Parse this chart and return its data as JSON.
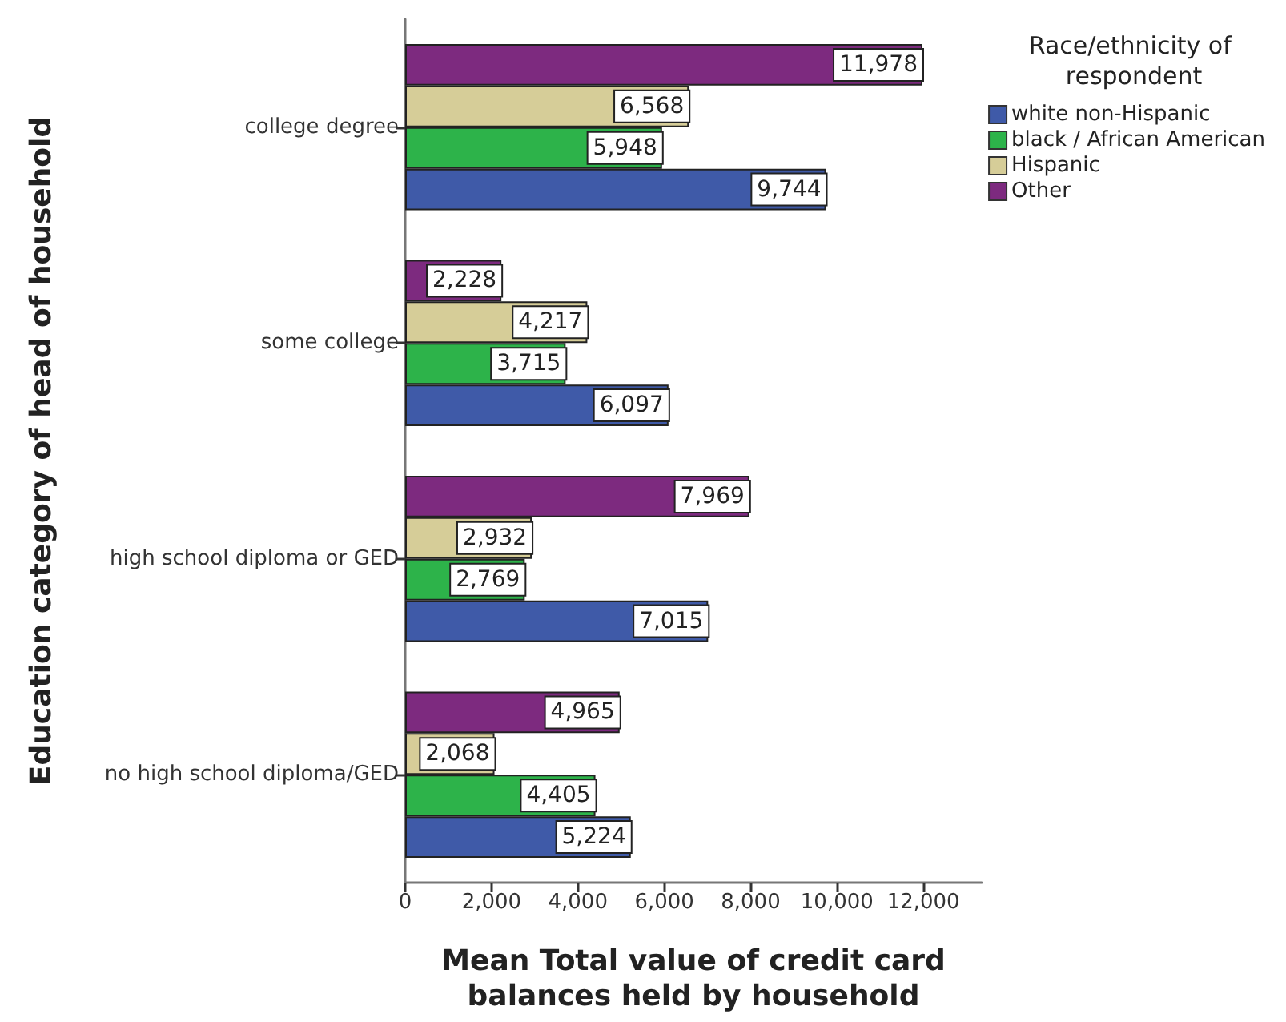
{
  "chart_data": {
    "type": "bar",
    "orientation": "horizontal",
    "ylabel": "Education category of head of household",
    "xlabel": "Mean Total value of credit card balances held by household",
    "legend_title": "Race/ethnicity of respondent",
    "categories": [
      "college degree",
      "some college",
      "high school diploma or GED",
      "no high school diploma/GED"
    ],
    "series": [
      {
        "name": "white non-Hispanic",
        "color": "#3f5aa8",
        "values": [
          9744,
          6097,
          7015,
          5224
        ],
        "value_labels": [
          "9,744",
          "6,097",
          "7,015",
          "5,224"
        ]
      },
      {
        "name": "black / African American",
        "color": "#2db34a",
        "values": [
          5948,
          3715,
          2769,
          4405
        ],
        "value_labels": [
          "5,948",
          "3,715",
          "2,769",
          "4,405"
        ]
      },
      {
        "name": "Hispanic",
        "color": "#d6cd98",
        "values": [
          6568,
          4217,
          2932,
          2068
        ],
        "value_labels": [
          "6,568",
          "4,217",
          "2,932",
          "2,068"
        ]
      },
      {
        "name": "Other",
        "color": "#7d2a7f",
        "values": [
          11978,
          2228,
          7969,
          4965
        ],
        "value_labels": [
          "11,978",
          "2,228",
          "7,969",
          "4,965"
        ]
      }
    ],
    "xlim": [
      0,
      13350
    ],
    "xticks": [
      0,
      {
        "value": 2000,
        "label": "2,000"
      },
      {
        "value": 4000,
        "label": "4,000"
      },
      {
        "value": 6000,
        "label": "6,000"
      },
      {
        "value": 8000,
        "label": "8,000"
      },
      {
        "value": 10000,
        "label": "10,000"
      },
      {
        "value": 12000,
        "label": "12,000"
      }
    ],
    "legend": "top right",
    "grid": false
  }
}
